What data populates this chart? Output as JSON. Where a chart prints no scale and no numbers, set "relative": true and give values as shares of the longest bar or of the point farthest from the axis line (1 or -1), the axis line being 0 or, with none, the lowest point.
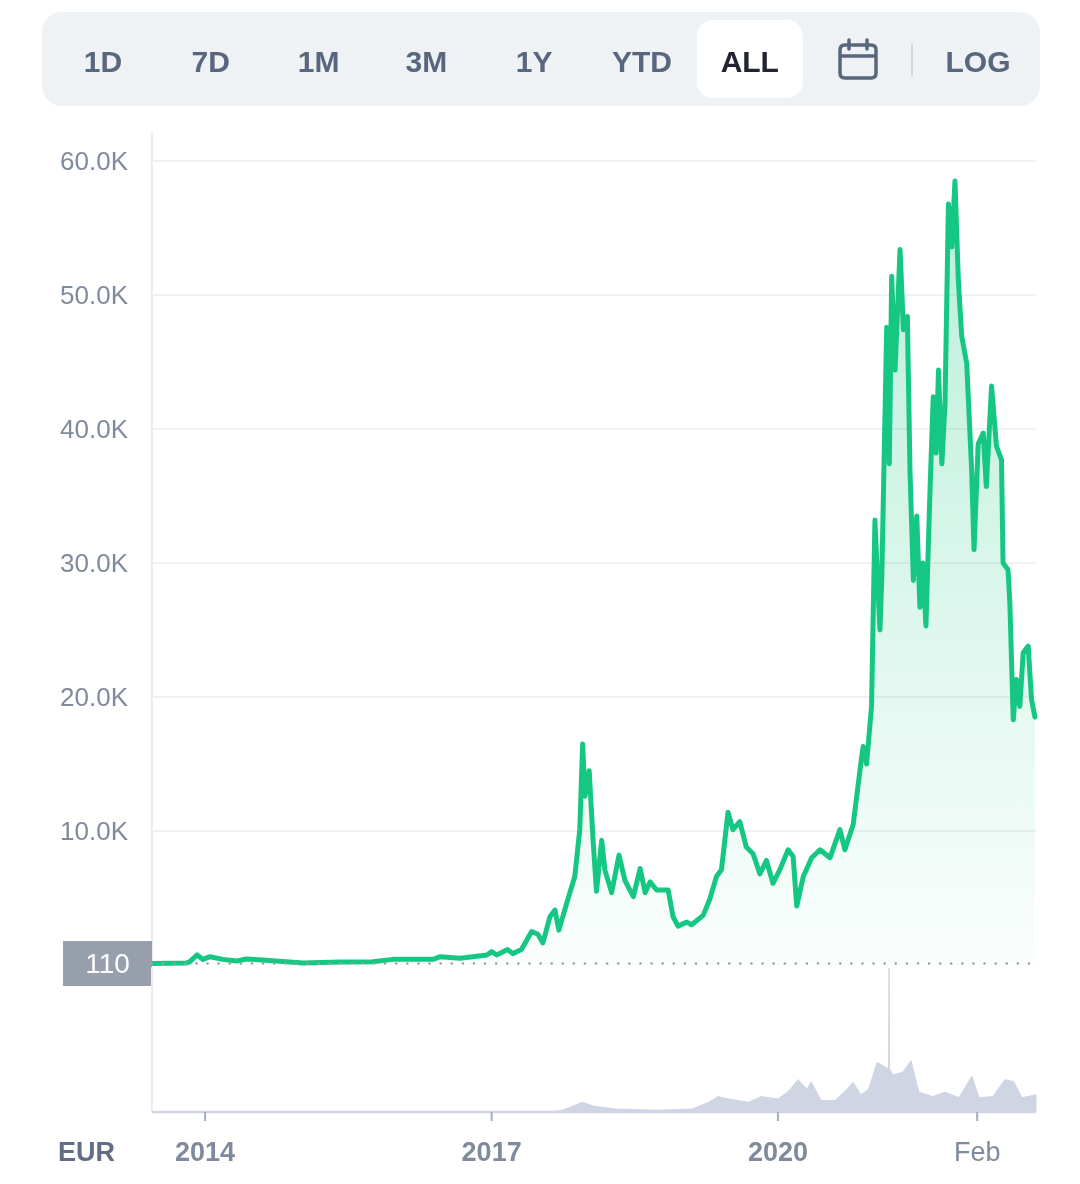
{
  "chart_data": [
    {
      "type": "area",
      "annotations": [
        "1D",
        "7D",
        "1M",
        "3M",
        "1Y",
        "YTD",
        "ALL",
        "LOG"
      ],
      "x": [
        "2013-06-12",
        "2013-10-20",
        "2013-11-04",
        "2013-12-01",
        "2013-12-24",
        "2014-01-20",
        "2014-03-10",
        "2014-05-02",
        "2014-06-09",
        "2014-08-10",
        "2015-01-10",
        "2015-06-01",
        "2015-10-04",
        "2015-12-20",
        "2016-05-22",
        "2016-06-18",
        "2016-09-02",
        "2016-12-14",
        "2017-01-01",
        "2017-01-20",
        "2017-03-03",
        "2017-03-23",
        "2017-04-25",
        "2017-06-03",
        "2017-06-27",
        "2017-07-16",
        "2017-08-12",
        "2017-08-31",
        "2017-09-15",
        "2017-10-21",
        "2017-11-15",
        "2017-12-04",
        "2017-12-15",
        "2017-12-24",
        "2018-01-09",
        "2018-01-24",
        "2018-02-06",
        "2018-02-26",
        "2018-03-10",
        "2018-04-05",
        "2018-05-03",
        "2018-05-26",
        "2018-06-27",
        "2018-07-23",
        "2018-08-11",
        "2018-08-30",
        "2018-09-24",
        "2018-11-07",
        "2018-11-26",
        "2018-12-15",
        "2019-01-17",
        "2019-02-05",
        "2019-03-21",
        "2019-04-15",
        "2019-05-11",
        "2019-05-30",
        "2019-06-24",
        "2019-07-13",
        "2019-08-08",
        "2019-09-02",
        "2019-09-28",
        "2019-10-24",
        "2019-11-18",
        "2019-12-13",
        "2020-01-08",
        "2020-02-09",
        "2020-02-28",
        "2020-03-13",
        "2020-04-07",
        "2020-05-09",
        "2020-06-10",
        "2020-07-18",
        "2020-08-25",
        "2020-09-13",
        "2020-10-15",
        "2020-11-16",
        "2020-11-22",
        "2020-12-05",
        "2020-12-24",
        "2021-01-06",
        "2021-01-25",
        "2021-02-01",
        "2021-02-20",
        "2021-03-02",
        "2021-03-11",
        "2021-03-24",
        "2021-04-12",
        "2021-04-25",
        "2021-05-10",
        "2021-05-20",
        "2021-06-02",
        "2021-06-15",
        "2021-06-27",
        "2021-07-08",
        "2021-07-20",
        "2021-08-05",
        "2021-08-17",
        "2021-08-28",
        "2021-09-06",
        "2021-09-19",
        "2021-10-01",
        "2021-10-14",
        "2021-10-27",
        "2021-11-08",
        "2021-11-21",
        "2021-12-04",
        "2021-12-23",
        "2022-01-11",
        "2022-01-20",
        "2022-02-05",
        "2022-02-24",
        "2022-03-08",
        "2022-03-28",
        "2022-04-16",
        "2022-05-05",
        "2022-05-11",
        "2022-05-30",
        "2022-06-06",
        "2022-06-19",
        "2022-07-01",
        "2022-07-14",
        "2022-07-27",
        "2022-08-15",
        "2022-08-28",
        "2022-09-10"
      ],
      "values": [
        110,
        140,
        250,
        750,
        420,
        620,
        420,
        300,
        450,
        370,
        150,
        220,
        250,
        420,
        420,
        620,
        500,
        750,
        1000,
        750,
        1150,
        850,
        1150,
        2500,
        2300,
        1650,
        3600,
        4100,
        2600,
        5000,
        6600,
        10100,
        16500,
        12600,
        14500,
        9300,
        5500,
        9300,
        7100,
        5400,
        8200,
        6300,
        5100,
        7200,
        5400,
        6200,
        5600,
        5600,
        3600,
        2900,
        3200,
        3000,
        3700,
        4900,
        6600,
        7100,
        11400,
        10100,
        10700,
        8800,
        8300,
        6800,
        7800,
        6100,
        7100,
        8600,
        8100,
        4400,
        6600,
        8000,
        8600,
        8000,
        10100,
        8600,
        10500,
        15500,
        16300,
        15000,
        19300,
        33200,
        25000,
        28700,
        47600,
        37400,
        51400,
        44400,
        53400,
        47400,
        48400,
        36900,
        28700,
        33500,
        26700,
        30000,
        25300,
        35700,
        42400,
        38200,
        44400,
        37400,
        41900,
        56800,
        53600,
        58500,
        51100,
        46900,
        44900,
        36900,
        31000,
        38900,
        39700,
        35700,
        43200,
        38700,
        37700,
        30000,
        29500,
        27000,
        18300,
        21300,
        19300,
        23300,
        23800,
        19800,
        18500
      ],
      "color": "#16c784",
      "xlim": [
        "2013-06-12",
        "2022-09-14"
      ],
      "ylim": [
        0,
        62000
      ],
      "yticks": [
        {
          "value": 10000,
          "label": "10.0K"
        },
        {
          "value": 20000,
          "label": "20.0K"
        },
        {
          "value": 30000,
          "label": "30.0K"
        },
        {
          "value": 40000,
          "label": "40.0K"
        },
        {
          "value": 50000,
          "label": "50.0K"
        },
        {
          "value": 60000,
          "label": "60.0K"
        }
      ],
      "grid": "y",
      "ref_lines": [
        {
          "axis": "y",
          "value": 110,
          "label": "110",
          "color": "#979fad",
          "line_style": "dotted"
        }
      ],
      "tick_labels": "y"
    },
    {
      "type": "area",
      "relative": true,
      "color": "#cfd5e3",
      "ylabel": "EUR",
      "x": [
        "2017-08-15",
        "2017-09-26",
        "2017-12-14",
        "2018-01-27",
        "2018-04-25",
        "2018-09-25",
        "2019-02-06",
        "2019-04-11",
        "2019-05-16",
        "2019-07-08",
        "2019-09-11",
        "2019-10-28",
        "2020-01-01",
        "2020-02-12",
        "2020-03-18",
        "2020-04-21",
        "2020-05-07",
        "2020-06-14",
        "2020-08-06",
        "2020-09-21",
        "2020-10-14",
        "2020-11-13",
        "2020-12-13",
        "2021-01-14",
        "2021-02-10",
        "2021-02-27",
        "2021-03-01",
        "2021-03-03",
        "2021-03-16",
        "2021-04-23",
        "2021-05-24",
        "2021-06-23",
        "2021-08-15",
        "2021-10-01",
        "2021-11-23",
        "2022-01-12",
        "2022-02-08",
        "2022-04-02",
        "2022-05-18",
        "2022-06-21",
        "2022-07-22",
        "2022-09-14"
      ],
      "values": [
        0,
        0.01,
        0.067,
        0.04,
        0.02,
        0.012,
        0.02,
        0.067,
        0.107,
        0.087,
        0.067,
        0.107,
        0.09,
        0.146,
        0.225,
        0.158,
        0.21,
        0.079,
        0.079,
        0.158,
        0.206,
        0.119,
        0.158,
        0.344,
        0.316,
        0.3,
        1,
        0.3,
        0.257,
        0.277,
        0.356,
        0.138,
        0.107,
        0.138,
        0.099,
        0.249,
        0.099,
        0.107,
        0.225,
        0.21,
        0.099,
        0.119
      ],
      "xlim": [
        "2013-06-12",
        "2022-09-14"
      ],
      "xticks": [
        "2014",
        "2017",
        "2020",
        {
          "value": "2022-02",
          "label": "Feb"
        }
      ],
      "tick_labels": "x"
    }
  ]
}
